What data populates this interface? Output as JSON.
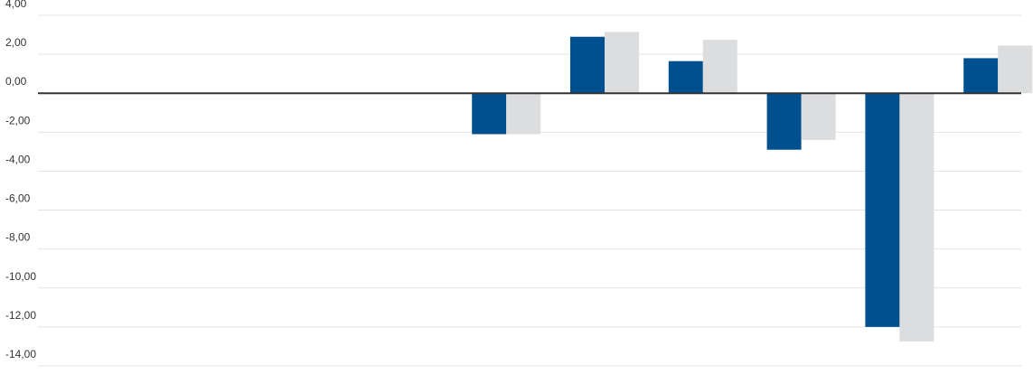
{
  "chart_data": {
    "type": "bar",
    "title": "",
    "xlabel": "",
    "ylabel": "",
    "ylim": [
      -14,
      4
    ],
    "ytick_step": 2,
    "ytick_labels": [
      "4,00",
      "2,00",
      "0,00",
      "-2,00",
      "-4,00",
      "-6,00",
      "-8,00",
      "-10,00",
      "-12,00",
      "-14,00"
    ],
    "grid": true,
    "legend": "none",
    "category_count": 10,
    "series": [
      {
        "color": "#00508f",
        "values": [
          null,
          null,
          null,
          null,
          -2.1,
          2.9,
          1.65,
          -2.9,
          -12.0,
          1.8
        ]
      },
      {
        "color": "#dcdddf",
        "values": [
          null,
          null,
          null,
          null,
          -2.1,
          3.15,
          2.75,
          -2.4,
          -12.75,
          2.45
        ]
      }
    ]
  }
}
